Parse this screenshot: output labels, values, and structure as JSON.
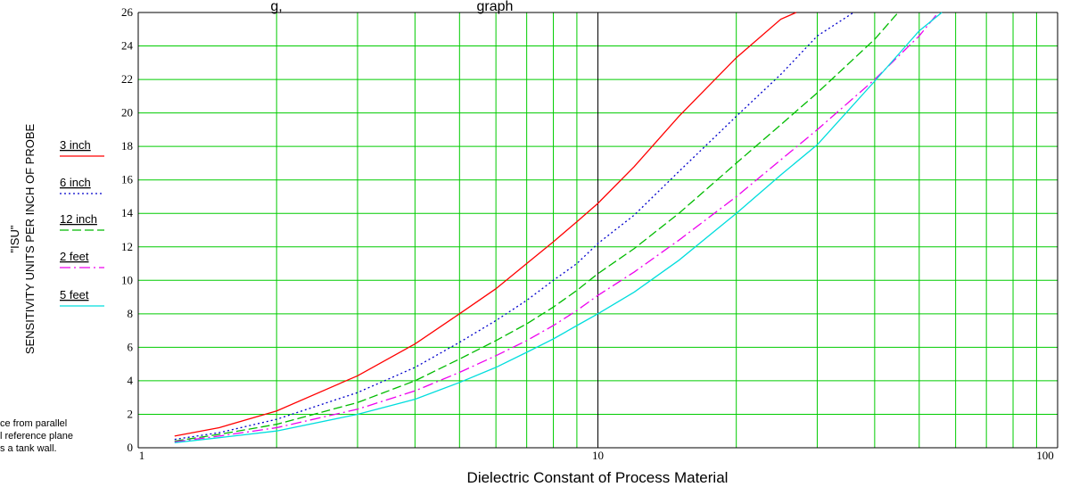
{
  "title_fragment_left": "g,",
  "title_fragment_right": "graph",
  "chart_data": {
    "type": "line",
    "xscale": "log",
    "xlim": [
      1,
      100
    ],
    "ylim": [
      0,
      26
    ],
    "xlabel": "Dielectric Constant of Process Material",
    "ylabel_line1": "\"ISU\"",
    "ylabel_line2": "SENSITIVITY UNITS PER INCH OF PROBE",
    "x_ticks_labeled": [
      "1",
      "10",
      "100"
    ],
    "y_ticks": [
      "0",
      "2",
      "4",
      "6",
      "8",
      "10",
      "12",
      "14",
      "16",
      "18",
      "20",
      "22",
      "24",
      "26"
    ],
    "grid": true,
    "grid_color": "#00cc00",
    "legend_placement": "left",
    "series": [
      {
        "name": "3 inch",
        "color": "#ff0000",
        "dash": "",
        "x": [
          1.2,
          1.5,
          2,
          3,
          4,
          5,
          6,
          7,
          8,
          9,
          10,
          12,
          15,
          20,
          25,
          27
        ],
        "y": [
          0.7,
          1.2,
          2.2,
          4.3,
          6.2,
          8.0,
          9.5,
          11.0,
          12.3,
          13.5,
          14.6,
          16.8,
          19.8,
          23.3,
          25.6,
          26
        ]
      },
      {
        "name": "6 inch",
        "color": "#0000cc",
        "dash": "2,3",
        "x": [
          1.2,
          1.5,
          2,
          3,
          4,
          5,
          6,
          7,
          8,
          9,
          10,
          12,
          15,
          20,
          25,
          30,
          36
        ],
        "y": [
          0.5,
          0.9,
          1.7,
          3.3,
          4.8,
          6.3,
          7.6,
          8.8,
          10.0,
          11.0,
          12.2,
          13.9,
          16.5,
          19.8,
          22.3,
          24.6,
          26
        ]
      },
      {
        "name": "12 inch",
        "color": "#00bb00",
        "dash": "10,4",
        "x": [
          1.2,
          1.5,
          2,
          3,
          4,
          5,
          6,
          7,
          8,
          9,
          10,
          12,
          15,
          20,
          25,
          30,
          40,
          45
        ],
        "y": [
          0.4,
          0.8,
          1.4,
          2.7,
          4.0,
          5.3,
          6.4,
          7.4,
          8.4,
          9.4,
          10.4,
          11.9,
          14.0,
          17.0,
          19.3,
          21.2,
          24.4,
          26
        ]
      },
      {
        "name": "2 feet",
        "color": "#ee00ee",
        "dash": "12,4,2,4",
        "x": [
          1.2,
          1.5,
          2,
          3,
          4,
          5,
          6,
          7,
          8,
          9,
          10,
          12,
          15,
          20,
          25,
          30,
          40,
          50,
          55
        ],
        "y": [
          0.35,
          0.7,
          1.2,
          2.3,
          3.4,
          4.5,
          5.5,
          6.4,
          7.3,
          8.2,
          9.1,
          10.5,
          12.4,
          15.0,
          17.2,
          19.0,
          22.0,
          24.6,
          26
        ]
      },
      {
        "name": "5 feet",
        "color": "#00dddd",
        "dash": "",
        "x": [
          1.2,
          1.5,
          2,
          3,
          4,
          5,
          6,
          7,
          8,
          9,
          10,
          12,
          15,
          20,
          25,
          30,
          40,
          50,
          56
        ],
        "y": [
          0.3,
          0.6,
          1.0,
          2.0,
          2.9,
          3.9,
          4.8,
          5.7,
          6.5,
          7.3,
          8.0,
          9.3,
          11.2,
          14.0,
          16.3,
          18.1,
          21.9,
          24.9,
          26
        ]
      }
    ]
  },
  "note_lines": [
    "ce from parallel",
    "l reference plane",
    "s a tank wall."
  ]
}
